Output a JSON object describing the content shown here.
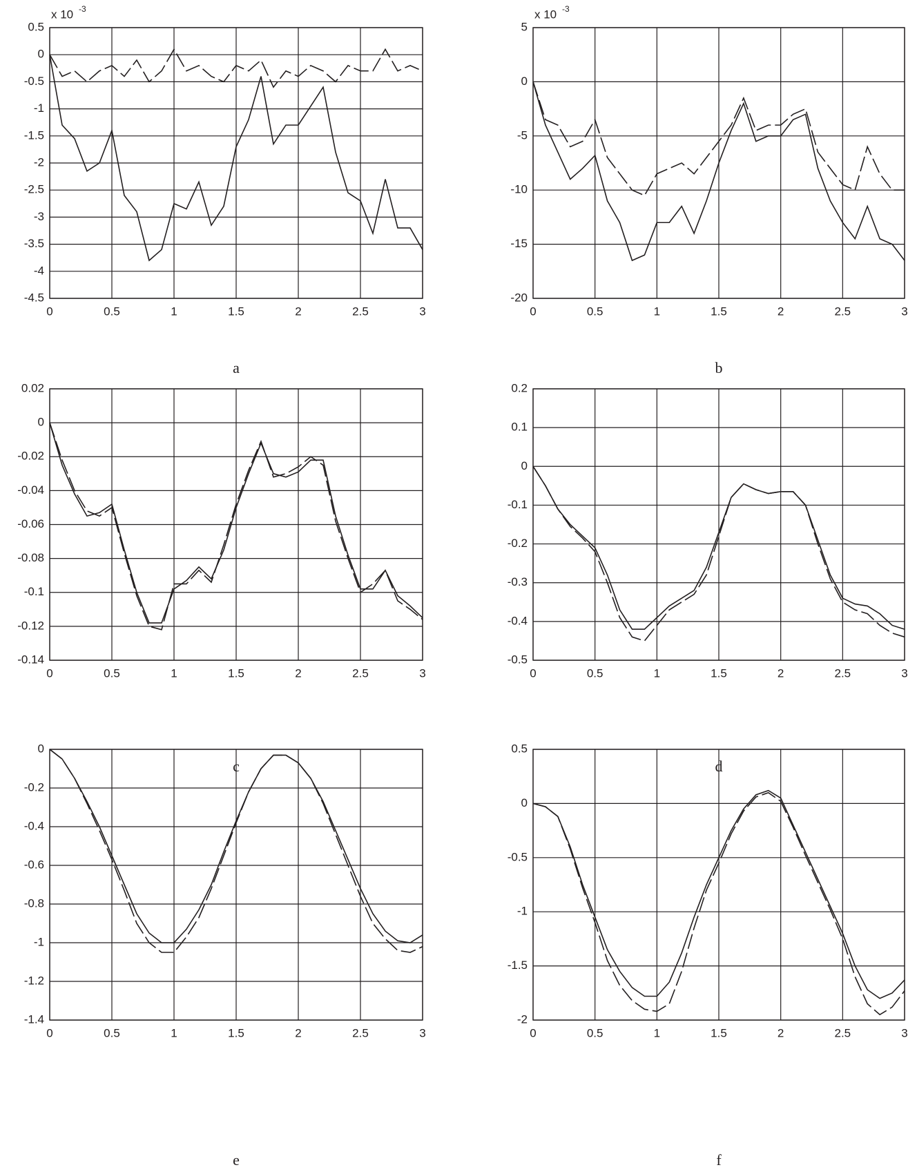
{
  "chart_data": [
    {
      "type": "line",
      "caption": "a",
      "multiplier": {
        "base": "x 10",
        "exponent": "-3"
      },
      "x": [
        0,
        0.1,
        0.2,
        0.3,
        0.4,
        0.5,
        0.6,
        0.7,
        0.8,
        0.9,
        1,
        1.1,
        1.2,
        1.3,
        1.4,
        1.5,
        1.6,
        1.7,
        1.8,
        1.9,
        2,
        2.1,
        2.2,
        2.3,
        2.4,
        2.5,
        2.6,
        2.7,
        2.8,
        2.9,
        3
      ],
      "series": [
        {
          "style": "solid",
          "color": "#231f20",
          "values": [
            0,
            -1.3,
            -1.55,
            -2.15,
            -2.0,
            -1.4,
            -2.6,
            -2.9,
            -3.8,
            -3.6,
            -2.75,
            -2.85,
            -2.35,
            -3.15,
            -2.8,
            -1.7,
            -1.2,
            -0.4,
            -1.65,
            -1.3,
            -1.3,
            -0.95,
            -0.6,
            -1.8,
            -2.55,
            -2.7,
            -3.3,
            -2.3,
            -3.2,
            -3.2,
            -3.6
          ]
        },
        {
          "style": "dashed",
          "color": "#231f20",
          "values": [
            0,
            -0.4,
            -0.3,
            -0.5,
            -0.3,
            -0.2,
            -0.4,
            -0.1,
            -0.5,
            -0.3,
            0.1,
            -0.3,
            -0.2,
            -0.4,
            -0.5,
            -0.2,
            -0.3,
            -0.1,
            -0.6,
            -0.3,
            -0.4,
            -0.2,
            -0.3,
            -0.5,
            -0.2,
            -0.3,
            -0.3,
            0.1,
            -0.3,
            -0.2,
            -0.3
          ]
        }
      ],
      "xlim": [
        0,
        3
      ],
      "xticks": [
        0,
        0.5,
        1,
        1.5,
        2,
        2.5,
        3
      ],
      "ylim": [
        -4.5,
        0.5
      ],
      "yticks": [
        0.5,
        0,
        -0.5,
        -1,
        -1.5,
        -2,
        -2.5,
        -3,
        -3.5,
        -4,
        -4.5
      ],
      "grid": true
    },
    {
      "type": "line",
      "caption": "b",
      "multiplier": {
        "base": "x 10",
        "exponent": "-3"
      },
      "x": [
        0,
        0.1,
        0.2,
        0.3,
        0.4,
        0.5,
        0.6,
        0.7,
        0.8,
        0.9,
        1,
        1.1,
        1.2,
        1.3,
        1.4,
        1.5,
        1.6,
        1.7,
        1.8,
        1.9,
        2,
        2.1,
        2.2,
        2.3,
        2.4,
        2.5,
        2.6,
        2.7,
        2.8,
        2.9,
        3
      ],
      "series": [
        {
          "style": "solid",
          "color": "#231f20",
          "values": [
            0,
            -4,
            -6.5,
            -9,
            -8,
            -6.8,
            -11,
            -13,
            -16.5,
            -16,
            -13,
            -13,
            -11.5,
            -14,
            -11,
            -7.5,
            -4.5,
            -2,
            -5.5,
            -5,
            -5,
            -3.5,
            -3,
            -8,
            -11,
            -13,
            -14.5,
            -11.5,
            -14.5,
            -15,
            -16.5
          ]
        },
        {
          "style": "dashed",
          "color": "#231f20",
          "values": [
            0,
            -3.5,
            -4,
            -6,
            -5.5,
            -3.5,
            -7,
            -8.5,
            -10,
            -10.5,
            -8.5,
            -8,
            -7.5,
            -8.5,
            -7,
            -5.5,
            -4,
            -1.5,
            -4.5,
            -4,
            -4,
            -3,
            -2.5,
            -6.5,
            -8,
            -9.5,
            -10,
            -6,
            -8.5,
            -10,
            -10
          ]
        }
      ],
      "xlim": [
        0,
        3
      ],
      "xticks": [
        0,
        0.5,
        1,
        1.5,
        2,
        2.5,
        3
      ],
      "ylim": [
        -20,
        5
      ],
      "yticks": [
        5,
        0,
        -5,
        -10,
        -15,
        -20
      ],
      "grid": true
    },
    {
      "type": "line",
      "caption": "c",
      "x": [
        0,
        0.1,
        0.2,
        0.3,
        0.4,
        0.5,
        0.6,
        0.7,
        0.8,
        0.9,
        1,
        1.1,
        1.2,
        1.3,
        1.4,
        1.5,
        1.6,
        1.7,
        1.8,
        1.9,
        2,
        2.1,
        2.2,
        2.3,
        2.4,
        2.5,
        2.6,
        2.7,
        2.8,
        2.9,
        3
      ],
      "series": [
        {
          "style": "solid",
          "color": "#231f20",
          "values": [
            0,
            -0.025,
            -0.042,
            -0.055,
            -0.053,
            -0.048,
            -0.075,
            -0.1,
            -0.118,
            -0.118,
            -0.098,
            -0.093,
            -0.085,
            -0.092,
            -0.075,
            -0.05,
            -0.03,
            -0.012,
            -0.03,
            -0.032,
            -0.029,
            -0.022,
            -0.022,
            -0.055,
            -0.078,
            -0.098,
            -0.098,
            -0.087,
            -0.102,
            -0.108,
            -0.115
          ]
        },
        {
          "style": "dashed",
          "color": "#231f20",
          "values": [
            0,
            -0.022,
            -0.04,
            -0.052,
            -0.055,
            -0.05,
            -0.077,
            -0.102,
            -0.12,
            -0.122,
            -0.095,
            -0.095,
            -0.087,
            -0.094,
            -0.072,
            -0.048,
            -0.028,
            -0.011,
            -0.032,
            -0.03,
            -0.026,
            -0.02,
            -0.025,
            -0.058,
            -0.08,
            -0.1,
            -0.095,
            -0.087,
            -0.105,
            -0.11,
            -0.116
          ]
        }
      ],
      "xlim": [
        0,
        3
      ],
      "xticks": [
        0,
        0.5,
        1,
        1.5,
        2,
        2.5,
        3
      ],
      "ylim": [
        -0.14,
        0.02
      ],
      "yticks": [
        0.02,
        0,
        -0.02,
        -0.04,
        -0.06,
        -0.08,
        -0.1,
        -0.12,
        -0.14
      ],
      "grid": true
    },
    {
      "type": "line",
      "caption": "d",
      "x": [
        0,
        0.1,
        0.2,
        0.3,
        0.4,
        0.5,
        0.6,
        0.7,
        0.8,
        0.9,
        1,
        1.1,
        1.2,
        1.3,
        1.4,
        1.5,
        1.6,
        1.7,
        1.8,
        1.9,
        2,
        2.1,
        2.2,
        2.3,
        2.4,
        2.5,
        2.6,
        2.7,
        2.8,
        2.9,
        3
      ],
      "series": [
        {
          "style": "solid",
          "color": "#231f20",
          "values": [
            0,
            -0.05,
            -0.11,
            -0.15,
            -0.18,
            -0.21,
            -0.28,
            -0.37,
            -0.42,
            -0.42,
            -0.39,
            -0.36,
            -0.34,
            -0.32,
            -0.26,
            -0.17,
            -0.08,
            -0.045,
            -0.06,
            -0.07,
            -0.065,
            -0.065,
            -0.1,
            -0.19,
            -0.28,
            -0.34,
            -0.355,
            -0.36,
            -0.38,
            -0.41,
            -0.42
          ]
        },
        {
          "style": "dashed",
          "color": "#231f20",
          "values": [
            0,
            -0.05,
            -0.11,
            -0.155,
            -0.185,
            -0.22,
            -0.3,
            -0.39,
            -0.44,
            -0.45,
            -0.41,
            -0.37,
            -0.35,
            -0.33,
            -0.28,
            -0.18,
            -0.08,
            -0.045,
            -0.06,
            -0.07,
            -0.065,
            -0.065,
            -0.1,
            -0.2,
            -0.29,
            -0.35,
            -0.37,
            -0.38,
            -0.41,
            -0.43,
            -0.44
          ]
        }
      ],
      "xlim": [
        0,
        3
      ],
      "xticks": [
        0,
        0.5,
        1,
        1.5,
        2,
        2.5,
        3
      ],
      "ylim": [
        -0.5,
        0.2
      ],
      "yticks": [
        0.2,
        0.1,
        0,
        -0.1,
        -0.2,
        -0.3,
        -0.4,
        -0.5
      ],
      "grid": true
    },
    {
      "type": "line",
      "caption": "e",
      "x": [
        0,
        0.1,
        0.2,
        0.3,
        0.4,
        0.5,
        0.6,
        0.7,
        0.8,
        0.9,
        1,
        1.1,
        1.2,
        1.3,
        1.4,
        1.5,
        1.6,
        1.7,
        1.8,
        1.9,
        2,
        2.1,
        2.2,
        2.3,
        2.4,
        2.5,
        2.6,
        2.7,
        2.8,
        2.9,
        3
      ],
      "series": [
        {
          "style": "solid",
          "color": "#231f20",
          "values": [
            0,
            -0.05,
            -0.15,
            -0.27,
            -0.4,
            -0.55,
            -0.7,
            -0.85,
            -0.95,
            -1.0,
            -1.0,
            -0.93,
            -0.83,
            -0.7,
            -0.53,
            -0.37,
            -0.22,
            -0.1,
            -0.03,
            -0.03,
            -0.07,
            -0.15,
            -0.27,
            -0.42,
            -0.57,
            -0.72,
            -0.85,
            -0.94,
            -0.99,
            -1.0,
            -0.96
          ]
        },
        {
          "style": "dashed",
          "color": "#231f20",
          "values": [
            0,
            -0.05,
            -0.15,
            -0.28,
            -0.42,
            -0.57,
            -0.73,
            -0.9,
            -1.0,
            -1.05,
            -1.05,
            -0.97,
            -0.87,
            -0.72,
            -0.55,
            -0.38,
            -0.22,
            -0.1,
            -0.03,
            -0.03,
            -0.07,
            -0.15,
            -0.28,
            -0.44,
            -0.6,
            -0.76,
            -0.9,
            -0.98,
            -1.04,
            -1.05,
            -1.02
          ]
        }
      ],
      "xlim": [
        0,
        3
      ],
      "xticks": [
        0,
        0.5,
        1,
        1.5,
        2,
        2.5,
        3
      ],
      "ylim": [
        -1.4,
        0
      ],
      "yticks": [
        0,
        -0.2,
        -0.4,
        -0.6,
        -0.8,
        -1,
        -1.2,
        -1.4
      ],
      "grid": true
    },
    {
      "type": "line",
      "caption": "f",
      "x": [
        0,
        0.1,
        0.2,
        0.3,
        0.4,
        0.5,
        0.6,
        0.7,
        0.8,
        0.9,
        1,
        1.1,
        1.2,
        1.3,
        1.4,
        1.5,
        1.6,
        1.7,
        1.8,
        1.9,
        2,
        2.1,
        2.2,
        2.3,
        2.4,
        2.5,
        2.6,
        2.7,
        2.8,
        2.9,
        3
      ],
      "series": [
        {
          "style": "solid",
          "color": "#231f20",
          "values": [
            0,
            -0.03,
            -0.12,
            -0.4,
            -0.75,
            -1.05,
            -1.35,
            -1.55,
            -1.7,
            -1.78,
            -1.78,
            -1.65,
            -1.38,
            -1.05,
            -0.75,
            -0.5,
            -0.25,
            -0.05,
            0.08,
            0.12,
            0.05,
            -0.2,
            -0.45,
            -0.7,
            -0.95,
            -1.2,
            -1.5,
            -1.72,
            -1.8,
            -1.75,
            -1.63
          ]
        },
        {
          "style": "dashed",
          "color": "#231f20",
          "values": [
            0,
            -0.03,
            -0.12,
            -0.42,
            -0.78,
            -1.1,
            -1.45,
            -1.68,
            -1.82,
            -1.9,
            -1.92,
            -1.85,
            -1.55,
            -1.15,
            -0.8,
            -0.55,
            -0.28,
            -0.07,
            0.06,
            0.1,
            0.02,
            -0.22,
            -0.48,
            -0.73,
            -0.98,
            -1.25,
            -1.6,
            -1.85,
            -1.95,
            -1.88,
            -1.73
          ]
        }
      ],
      "xlim": [
        0,
        3
      ],
      "xticks": [
        0,
        0.5,
        1,
        1.5,
        2,
        2.5,
        3
      ],
      "ylim": [
        -2,
        0.5
      ],
      "yticks": [
        0.5,
        0,
        -0.5,
        -1,
        -1.5,
        -2
      ],
      "grid": true
    }
  ]
}
